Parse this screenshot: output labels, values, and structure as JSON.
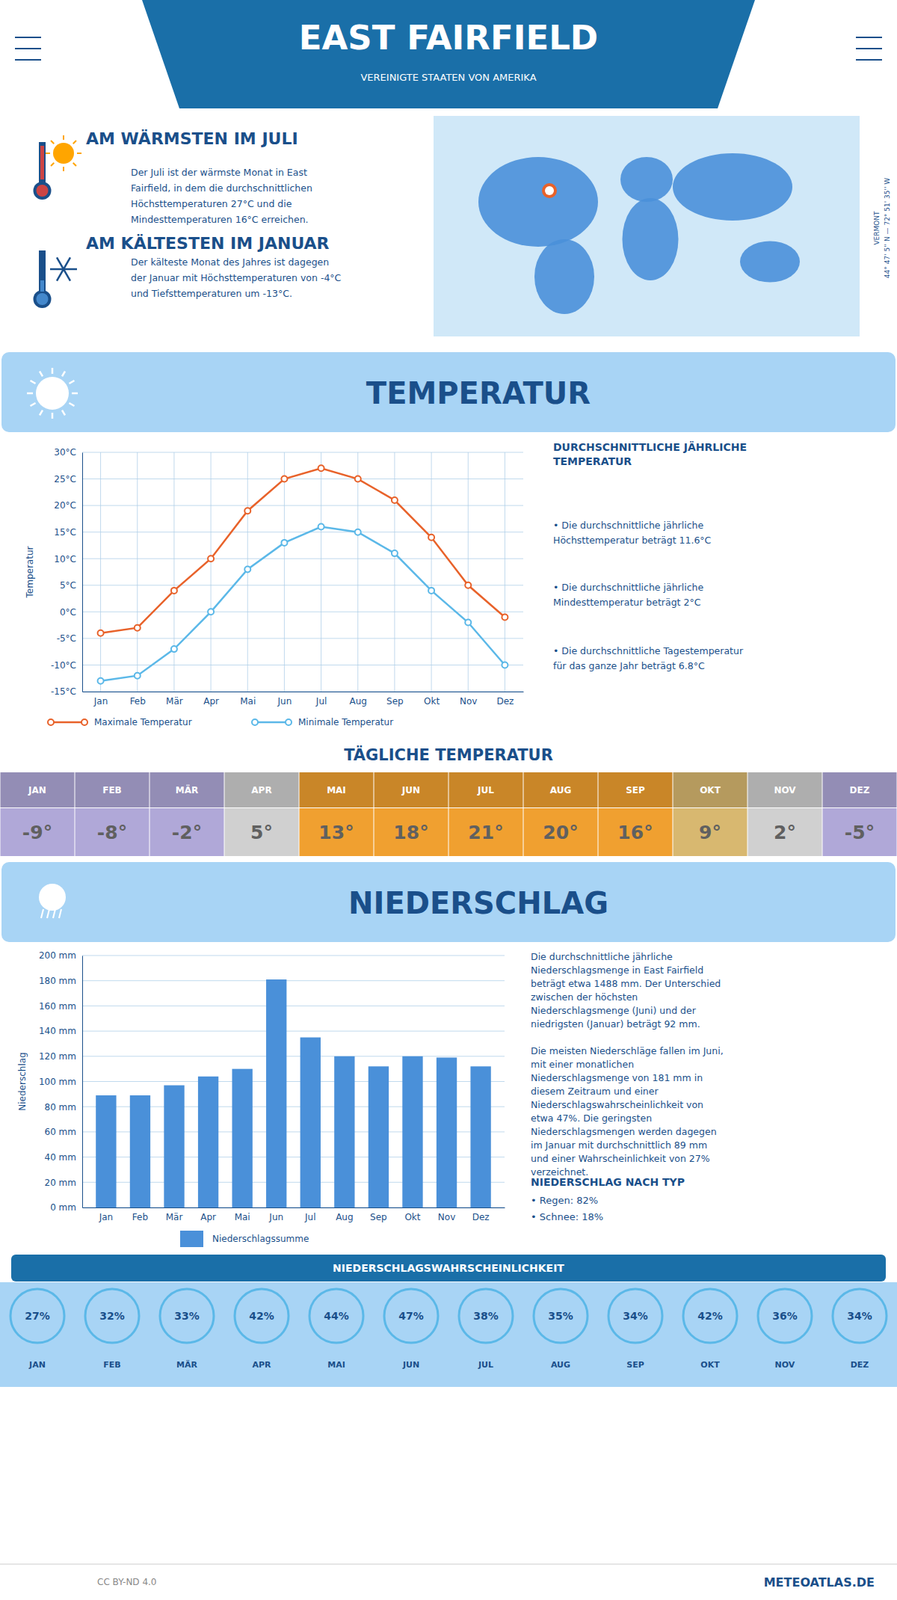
{
  "title": "EAST FAIRFIELD",
  "subtitle": "VEREINIGTE STAATEN VON AMERIKA",
  "annotations": [
    "AM WÄRMSTEN IM JULI",
    "Der Juli ist der wärmste Monat in East\nFairfield, in dem die durchschnittlichen\nHöchsttemperaturen 27°C und die\nMindesttemperaturen 16°C erreichen.",
    "AM KÄLTESTEN IM JANUAR",
    "Der kälteste Monat des Jahres ist dagegen\nder Januar mit Höchsttemperaturen von -4°C\nund Tiefsttemperaturen um -13°C.",
    "44° 47' 5'' N — 72° 51' 35'' W",
    "VERMONT",
    "CC BY-ND 4.0",
    "METEOATLAS.DE"
  ],
  "chart_data": [
    {
      "type": "line",
      "title": "TEMPERATUR",
      "categories": [
        "Jan",
        "Feb",
        "Mär",
        "Apr",
        "Mai",
        "Jun",
        "Jul",
        "Aug",
        "Sep",
        "Okt",
        "Nov",
        "Dez"
      ],
      "series": [
        {
          "name": "Maximale Temperatur",
          "color": "#e8622a",
          "marker": "circle",
          "values": [
            -4,
            -3,
            4,
            10,
            19,
            25,
            27,
            25,
            21,
            14,
            5,
            -1
          ]
        },
        {
          "name": "Minimale Temperatur",
          "color": "#5bb8e8",
          "marker": "circle",
          "values": [
            -13,
            -12,
            -7,
            0,
            8,
            13,
            16,
            15,
            11,
            4,
            -2,
            -10
          ]
        }
      ],
      "ylim": [
        -15,
        30
      ],
      "yticks": [
        {
          "value": -15,
          "label": "-15°C"
        },
        {
          "value": -10,
          "label": "-10°C"
        },
        {
          "value": -5,
          "label": "-5°C"
        },
        {
          "value": 0,
          "label": "0°C"
        },
        {
          "value": 5,
          "label": "5°C"
        },
        {
          "value": 10,
          "label": "10°C"
        },
        {
          "value": 15,
          "label": "15°C"
        },
        {
          "value": 20,
          "label": "20°C"
        },
        {
          "value": 25,
          "label": "25°C"
        },
        {
          "value": 30,
          "label": "30°C"
        }
      ],
      "ylabel": "Temperatur",
      "grid": true,
      "legend": "bottom",
      "annotations": [
        "DURCHSCHNITTLICHE JÄHRLICHE\nTEMPERATUR",
        "• Die durchschnittliche jährliche\nHöchsttemperatur beträgt 11.6°C",
        "• Die durchschnittliche jährliche\nMindesttemperatur beträgt 2°C",
        "• Die durchschnittliche Tagestemperatur\nfür das ganze Jahr beträgt 6.8°C"
      ]
    },
    {
      "type": "table",
      "title": "TÄGLICHE TEMPERATUR",
      "categories": [
        "JAN",
        "FEB",
        "MÄR",
        "APR",
        "MAI",
        "JUN",
        "JUL",
        "AUG",
        "SEP",
        "OKT",
        "NOV",
        "DEZ"
      ],
      "values": [
        -9,
        -8,
        -2,
        5,
        13,
        18,
        21,
        20,
        16,
        9,
        2,
        -5
      ],
      "value_labels": [
        "-9°",
        "-8°",
        "-2°",
        "5°",
        "13°",
        "18°",
        "21°",
        "20°",
        "16°",
        "9°",
        "2°",
        "-5°"
      ],
      "data_labels": true,
      "colors": [
        "#b0a8d8",
        "#b0a8d8",
        "#b0a8d8",
        "#d0d0d0",
        "#f0a030",
        "#f0a030",
        "#f0a030",
        "#f0a030",
        "#f0a030",
        "#d8b870",
        "#d0d0d0",
        "#b0a8d8"
      ]
    },
    {
      "type": "bar",
      "title": "NIEDERSCHLAG",
      "categories": [
        "Jan",
        "Feb",
        "Mär",
        "Apr",
        "Mai",
        "Jun",
        "Jul",
        "Aug",
        "Sep",
        "Okt",
        "Nov",
        "Dez"
      ],
      "series": [
        {
          "name": "Niederschlagssumme",
          "color": "#4a90d9",
          "values": [
            89,
            89,
            97,
            104,
            110,
            181,
            135,
            120,
            112,
            120,
            119,
            112
          ]
        }
      ],
      "ylim": [
        0,
        200
      ],
      "yticks": [
        {
          "value": 0,
          "label": "0 mm"
        },
        {
          "value": 20,
          "label": "20 mm"
        },
        {
          "value": 40,
          "label": "40 mm"
        },
        {
          "value": 60,
          "label": "60 mm"
        },
        {
          "value": 80,
          "label": "80 mm"
        },
        {
          "value": 100,
          "label": "100 mm"
        },
        {
          "value": 120,
          "label": "120 mm"
        },
        {
          "value": 140,
          "label": "140 mm"
        },
        {
          "value": 160,
          "label": "160 mm"
        },
        {
          "value": 180,
          "label": "180 mm"
        },
        {
          "value": 200,
          "label": "200 mm"
        }
      ],
      "ylabel": "Niederschlag",
      "grid": "y",
      "legend": "bottom",
      "annotations": [
        "Die durchschnittliche jährliche\nNiederschlagsmenge in East Fairfield\nbeträgt etwa 1488 mm. Der Unterschied\nzwischen der höchsten\nNiederschlagsmenge (Juni) und der\nniedrigsten (Januar) beträgt 92 mm.\n\nDie meisten Niederschläge fallen im Juni,\nmit einer monatlichen\nNiederschlagsmenge von 181 mm in\ndiesem Zeitraum und einer\nNiederschlagswahrscheinlichkeit von\netwa 47%. Die geringsten\nNiederschlagsmengen werden dagegen\nim Januar mit durchschnittlich 89 mm\nund einer Wahrscheinlichkeit von 27%\nverzeichnet.",
        "NIEDERSCHLAG NACH TYP",
        "• Regen: 82%",
        "• Schnee: 18%"
      ]
    },
    {
      "type": "table",
      "title": "NIEDERSCHLAGSWAHRSCHEINLICHKEIT",
      "categories": [
        "JAN",
        "FEB",
        "MÄR",
        "APR",
        "MAI",
        "JUN",
        "JUL",
        "AUG",
        "SEP",
        "OKT",
        "NOV",
        "DEZ"
      ],
      "values": [
        27,
        32,
        33,
        42,
        44,
        47,
        38,
        35,
        34,
        42,
        36,
        34
      ],
      "value_labels": [
        "27%",
        "32%",
        "33%",
        "42%",
        "44%",
        "47%",
        "38%",
        "35%",
        "34%",
        "42%",
        "36%",
        "34%"
      ],
      "data_labels": true,
      "marker": "circle",
      "color": "#5bb8e8"
    }
  ]
}
